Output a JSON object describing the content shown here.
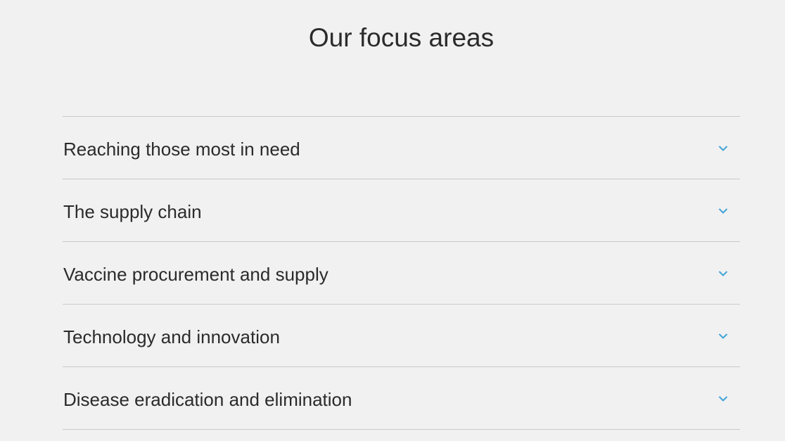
{
  "section": {
    "title": "Our focus areas"
  },
  "accordion": {
    "accent_color": "#3fa4d8",
    "items": [
      {
        "label": "Reaching those most in need",
        "icon": "chevron-down-icon",
        "expanded": false
      },
      {
        "label": "The supply chain",
        "icon": "chevron-down-icon",
        "expanded": false
      },
      {
        "label": "Vaccine procurement and supply",
        "icon": "chevron-down-icon",
        "expanded": false
      },
      {
        "label": "Technology and innovation",
        "icon": "chevron-down-icon",
        "expanded": false
      },
      {
        "label": "Disease eradication and elimination",
        "icon": "chevron-down-icon",
        "expanded": false
      }
    ]
  }
}
